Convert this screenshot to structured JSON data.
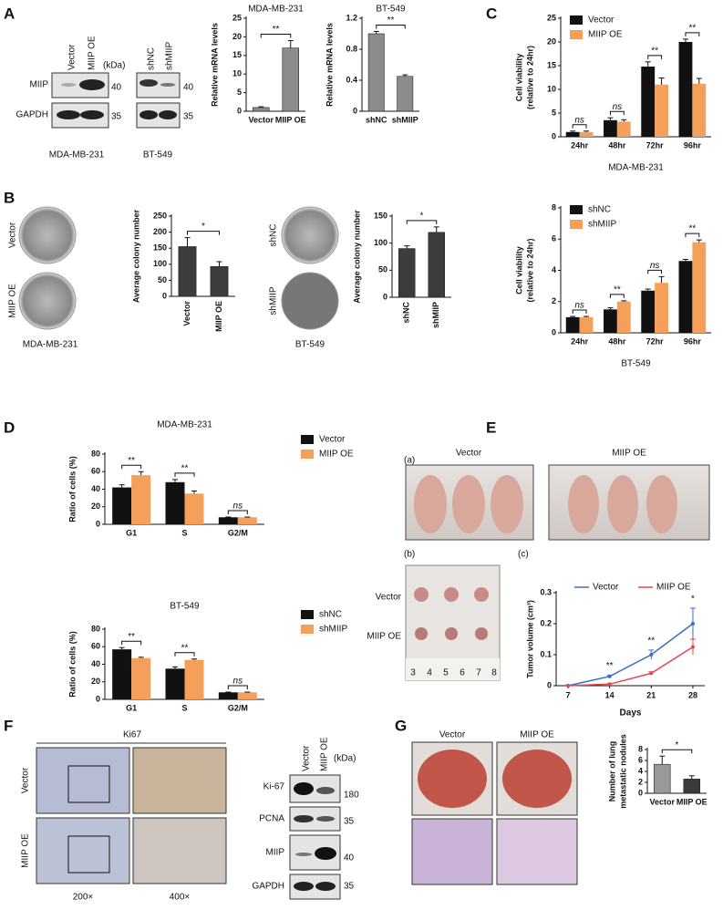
{
  "panel_letters": [
    "A",
    "B",
    "C",
    "D",
    "E",
    "F",
    "G"
  ],
  "blot_A": {
    "lanes_left": [
      "Vector",
      "MIIP OE"
    ],
    "lanes_right": [
      "shNC",
      "shMIIP"
    ],
    "kda": "(kDa)",
    "proteins": [
      "MIIP",
      "GAPDH"
    ],
    "markers": [
      "40",
      "35"
    ],
    "cells": [
      "MDA-MB-231",
      "BT-549"
    ]
  },
  "colony_B": {
    "left_rows": [
      "Vector",
      "MIIP OE"
    ],
    "left_cell": "MDA-MB-231",
    "right_rows": [
      "shNC",
      "shMIIP"
    ],
    "right_cell": "BT-549"
  },
  "mice_E": {
    "sublabels": [
      "(a)",
      "(b)",
      "(c)"
    ],
    "groups": [
      "Vector",
      "MIIP OE"
    ],
    "tumor_rows": [
      "Vector",
      "MIIP OE"
    ],
    "ruler": [
      "3",
      "4",
      "5",
      "6",
      "7",
      "8"
    ]
  },
  "ihc_F": {
    "stain": "Ki67",
    "rows": [
      "Vector",
      "MIIP OE"
    ],
    "mags": [
      "200×",
      "400×"
    ],
    "blot_lanes": [
      "Vector",
      "MIIP OE"
    ],
    "kda": "(kDa)",
    "proteins": [
      "Ki-67",
      "PCNA",
      "MIIP",
      "GAPDH"
    ],
    "markers": [
      "180",
      "35",
      "40",
      "35"
    ]
  },
  "lung_G": {
    "groups": [
      "Vector",
      "MIIP OE"
    ]
  },
  "chart_data": [
    {
      "type": "bar",
      "title": "MDA-MB-231",
      "ylabel": "Relative mRNA levels",
      "categories": [
        "Vector",
        "MIIP OE"
      ],
      "values": [
        1,
        17
      ],
      "errors": [
        0.2,
        2
      ],
      "color": "#8c8c8c",
      "ylim": [
        0,
        25
      ],
      "yticks": [
        0,
        5,
        10,
        15,
        20,
        25
      ],
      "annotations": [
        "**"
      ]
    },
    {
      "type": "bar",
      "title": "BT-549",
      "ylabel": "Relative mRNA levels",
      "categories": [
        "shNC",
        "shMIIP"
      ],
      "values": [
        1.0,
        0.45
      ],
      "errors": [
        0.03,
        0.02
      ],
      "color": "#8c8c8c",
      "ylim": [
        0,
        1.2
      ],
      "yticks": [
        0,
        0.4,
        0.8,
        1.2
      ],
      "annotations": [
        "**"
      ]
    },
    {
      "type": "bar",
      "ylabel": [
        "Cell viability",
        "(relative to 24hr)"
      ],
      "xlabel": "MDA-MB-231",
      "categories": [
        "24hr",
        "48hr",
        "72hr",
        "96hr"
      ],
      "series": [
        {
          "name": "Vector",
          "color": "#111111",
          "values": [
            1,
            3.5,
            14.8,
            20
          ],
          "errors": [
            0.2,
            0.5,
            1,
            0.6
          ]
        },
        {
          "name": "MIIP OE",
          "color": "#f5a05a",
          "values": [
            1,
            3.2,
            11,
            11.2
          ],
          "errors": [
            0.2,
            0.4,
            1.4,
            1.1
          ]
        }
      ],
      "ylim": [
        0,
        25
      ],
      "yticks": [
        0,
        5,
        10,
        15,
        20,
        25
      ],
      "annotations": [
        "ns",
        "ns",
        "**",
        "**"
      ],
      "legend": "top-left"
    },
    {
      "type": "bar",
      "ylabel": [
        "Cell viability",
        "(relative to 24hr)"
      ],
      "xlabel": "BT-549",
      "categories": [
        "24hr",
        "48hr",
        "72hr",
        "96hr"
      ],
      "series": [
        {
          "name": "shNC",
          "color": "#111111",
          "values": [
            1,
            1.5,
            2.7,
            4.6
          ],
          "errors": [
            0.05,
            0.1,
            0.1,
            0.1
          ]
        },
        {
          "name": "shMIIP",
          "color": "#f5a05a",
          "values": [
            1,
            2,
            3.2,
            5.8
          ],
          "errors": [
            0.05,
            0.05,
            0.4,
            0.15
          ]
        }
      ],
      "ylim": [
        0,
        8
      ],
      "yticks": [
        0,
        2,
        4,
        6,
        8
      ],
      "annotations": [
        "ns",
        "**",
        "ns",
        "**"
      ],
      "legend": "top-left"
    },
    {
      "type": "bar",
      "ylabel": "Average colony number",
      "categories": [
        "Vector",
        "MIIP OE"
      ],
      "values": [
        155,
        93
      ],
      "errors": [
        28,
        15
      ],
      "color": "#3c3c3c",
      "ylim": [
        0,
        250
      ],
      "yticks": [
        0,
        50,
        100,
        150,
        200,
        250
      ],
      "annotations": [
        "*"
      ]
    },
    {
      "type": "bar",
      "ylabel": "Average colony number",
      "categories": [
        "shNC",
        "shMIIP"
      ],
      "values": [
        90,
        120
      ],
      "errors": [
        5,
        10
      ],
      "color": "#3c3c3c",
      "ylim": [
        0,
        150
      ],
      "yticks": [
        0,
        50,
        100,
        150
      ],
      "annotations": [
        "*"
      ]
    },
    {
      "type": "bar",
      "title": "MDA-MB-231",
      "ylabel": "Ratio of cells (%)",
      "categories": [
        "G1",
        "S",
        "G2/M"
      ],
      "series": [
        {
          "name": "Vector",
          "color": "#111111",
          "values": [
            42,
            48,
            8
          ],
          "errors": [
            3,
            3,
            0.3
          ]
        },
        {
          "name": "MIIP OE",
          "color": "#f5a05a",
          "values": [
            56,
            35,
            8
          ],
          "errors": [
            4,
            3,
            0.3
          ]
        }
      ],
      "ylim": [
        0,
        80
      ],
      "yticks": [
        0,
        20,
        40,
        60,
        80
      ],
      "annotations": [
        "**",
        "**",
        "ns"
      ],
      "legend": "right"
    },
    {
      "type": "bar",
      "title": "BT-549",
      "ylabel": "Ratio of cells (%)",
      "categories": [
        "G1",
        "S",
        "G2/M"
      ],
      "series": [
        {
          "name": "shNC",
          "color": "#111111",
          "values": [
            57,
            35,
            8
          ],
          "errors": [
            2,
            2,
            0.3
          ]
        },
        {
          "name": "shMIIP",
          "color": "#f5a05a",
          "values": [
            47,
            45,
            8
          ],
          "errors": [
            1,
            1,
            0.3
          ]
        }
      ],
      "ylim": [
        0,
        80
      ],
      "yticks": [
        0,
        20,
        40,
        60,
        80
      ],
      "annotations": [
        "**",
        "**",
        "ns"
      ],
      "legend": "right"
    },
    {
      "type": "line",
      "ylabel": "Tumor volume (cm³)",
      "xlabel": "Days",
      "x": [
        7,
        14,
        21,
        28
      ],
      "series": [
        {
          "name": "Vector",
          "color": "#3a6fc4",
          "values": [
            0,
            0.03,
            0.1,
            0.2
          ],
          "errors": [
            0.002,
            0.004,
            0.015,
            0.05
          ]
        },
        {
          "name": "MIIP OE",
          "color": "#e8474f",
          "values": [
            0,
            0.005,
            0.04,
            0.125
          ],
          "errors": [
            0.001,
            0.002,
            0.005,
            0.025
          ]
        }
      ],
      "xlim": [
        5,
        30
      ],
      "xticks": [
        7,
        14,
        21,
        28
      ],
      "ylim": [
        0,
        0.3
      ],
      "yticks": [
        0,
        0.1,
        0.2,
        0.3
      ],
      "annotations": [
        null,
        "**",
        "**",
        "*"
      ],
      "legend": "top"
    },
    {
      "type": "bar",
      "ylabel": [
        "Number of lung",
        "metastatic nodules"
      ],
      "categories": [
        "Vector",
        "MIIP OE"
      ],
      "values": [
        5.3,
        2.6
      ],
      "errors": [
        1.5,
        0.6
      ],
      "colors": [
        "#999999",
        "#3a3a3a"
      ],
      "ylim": [
        0,
        8
      ],
      "yticks": [
        0,
        2,
        4,
        6,
        8
      ],
      "annotations": [
        "*"
      ]
    }
  ]
}
